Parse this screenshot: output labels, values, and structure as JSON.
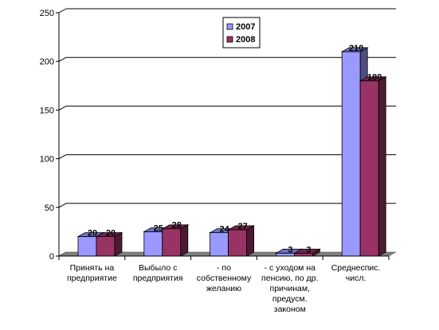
{
  "chart_data": {
    "type": "bar",
    "categories": [
      [
        "Принять на",
        "предприятие"
      ],
      [
        "Выбыло с",
        "предприятия"
      ],
      [
        "- по",
        "собственному",
        "желанию"
      ],
      [
        "- с уходом на",
        "пенсию, по др.",
        "причинам,",
        "предусм.",
        "законом"
      ],
      [
        "Среднеспис.",
        "числ."
      ]
    ],
    "series": [
      {
        "name": "2007",
        "values": [
          20,
          25,
          24,
          3,
          210
        ],
        "color": "#9999ff"
      },
      {
        "name": "2008",
        "values": [
          20,
          28,
          27,
          3,
          180
        ],
        "color": "#993366"
      }
    ],
    "ylim": [
      0,
      250
    ],
    "yticks": [
      0,
      50,
      100,
      150,
      200,
      250
    ],
    "grid": true,
    "legend_position": "top-center",
    "three_d": true
  }
}
